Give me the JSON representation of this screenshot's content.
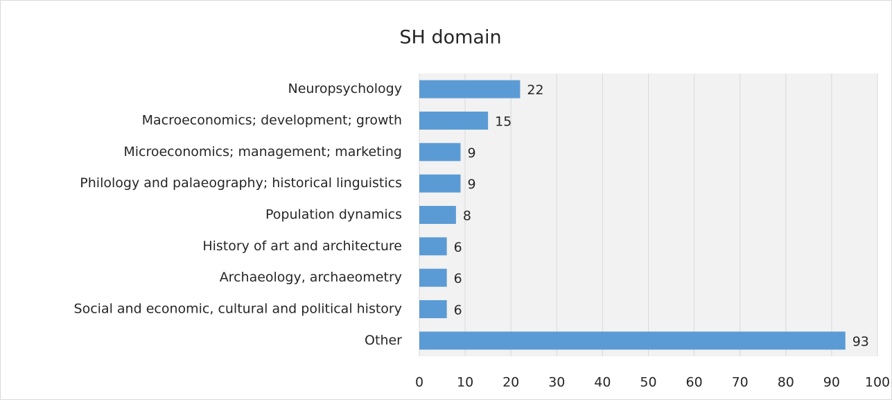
{
  "chart_data": {
    "type": "bar",
    "orientation": "horizontal",
    "title": "SH domain",
    "categories": [
      "Neuropsychology",
      "Macroeconomics; development; growth",
      "Microeconomics; management; marketing",
      "Philology and palaeography; historical linguistics",
      "Population dynamics",
      "History of art and architecture",
      "Archaeology, archaeometry",
      "Social and economic, cultural and political history",
      "Other"
    ],
    "values": [
      22,
      15,
      9,
      9,
      8,
      6,
      6,
      6,
      93
    ],
    "color": "#5b9bd5",
    "xlim": [
      0,
      100
    ],
    "xticks": [
      0,
      10,
      20,
      30,
      40,
      50,
      60,
      70,
      80,
      90,
      100
    ],
    "grid": true
  }
}
